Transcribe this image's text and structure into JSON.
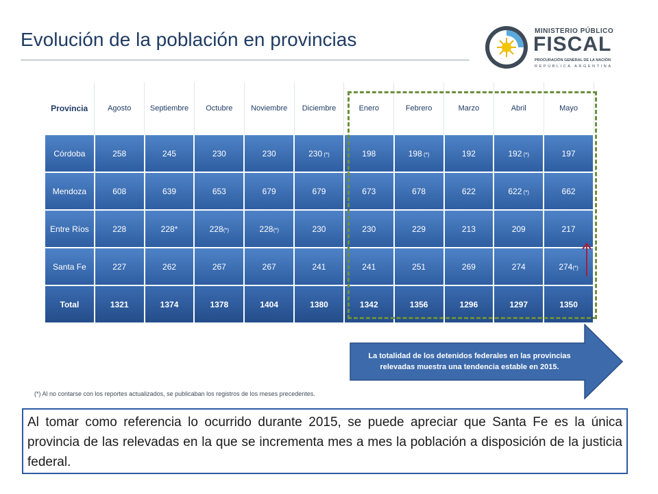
{
  "title": "Evolución de la población en provincias",
  "logo": {
    "top": "MINISTERIO PÚBLICO",
    "main": "FISCAL",
    "sub1": "PROCURACIÓN GENERAL DE LA NACIÓN",
    "sub2": "REPÚBLICA ARGENTINA"
  },
  "table": {
    "headers": [
      "Provincia",
      "Agosto",
      "Septiembre",
      "Octubre",
      "Noviembre",
      "Diciembre",
      "Enero",
      "Febrero",
      "Marzo",
      "Abril",
      "Mayo"
    ],
    "rows": [
      {
        "provincia": "Córdoba",
        "cells": [
          {
            "v": "258"
          },
          {
            "v": "245"
          },
          {
            "v": "230"
          },
          {
            "v": "230"
          },
          {
            "v": "230",
            "n": " (*)"
          },
          {
            "v": "198"
          },
          {
            "v": "198",
            "n": " (*)"
          },
          {
            "v": "192"
          },
          {
            "v": "192",
            "n": " (*)"
          },
          {
            "v": "197"
          }
        ]
      },
      {
        "provincia": "Mendoza",
        "cells": [
          {
            "v": "608"
          },
          {
            "v": "639"
          },
          {
            "v": "653"
          },
          {
            "v": "679"
          },
          {
            "v": "679"
          },
          {
            "v": "673"
          },
          {
            "v": "678"
          },
          {
            "v": "622"
          },
          {
            "v": "622",
            "n": " (*)"
          },
          {
            "v": "662"
          }
        ]
      },
      {
        "provincia": "Entre Ríos",
        "cells": [
          {
            "v": "228"
          },
          {
            "v": "228*"
          },
          {
            "v": "228",
            "n": "(*)"
          },
          {
            "v": "228",
            "n": "(*)"
          },
          {
            "v": "230"
          },
          {
            "v": "230"
          },
          {
            "v": "229"
          },
          {
            "v": "213"
          },
          {
            "v": "209"
          },
          {
            "v": "217"
          }
        ]
      },
      {
        "provincia": "Santa Fe",
        "cells": [
          {
            "v": "227"
          },
          {
            "v": "262"
          },
          {
            "v": "267"
          },
          {
            "v": "267"
          },
          {
            "v": "241"
          },
          {
            "v": "241"
          },
          {
            "v": "251"
          },
          {
            "v": "269"
          },
          {
            "v": "274"
          },
          {
            "v": "274",
            "n": "(*)"
          }
        ]
      }
    ],
    "total": {
      "label": "Total",
      "values": [
        "1321",
        "1374",
        "1378",
        "1404",
        "1380",
        "1342",
        "1356",
        "1296",
        "1297",
        "1350"
      ]
    }
  },
  "callout": "La totalidad de los detenidos federales en las provincias relevadas muestra una tendencia estable en 2015.",
  "footnote": "(*) Al no contarse con los reportes actualizados, se publicaban los registros de los meses precedentes.",
  "summary": "Al tomar como referencia lo ocurrido durante 2015, se puede apreciar que Santa Fe es la única provincia de las relevadas en la que se incrementa mes a mes la población a disposición de la justicia federal.",
  "colors": {
    "title": "#1f3b63",
    "cell": "#3a6bb0",
    "dashed": "#6c8f3c",
    "arrow": "#a3213b",
    "callout": "#3c6aab"
  },
  "icons": [
    "sun-emblem-icon",
    "up-arrow-icon",
    "right-arrow-shape"
  ]
}
